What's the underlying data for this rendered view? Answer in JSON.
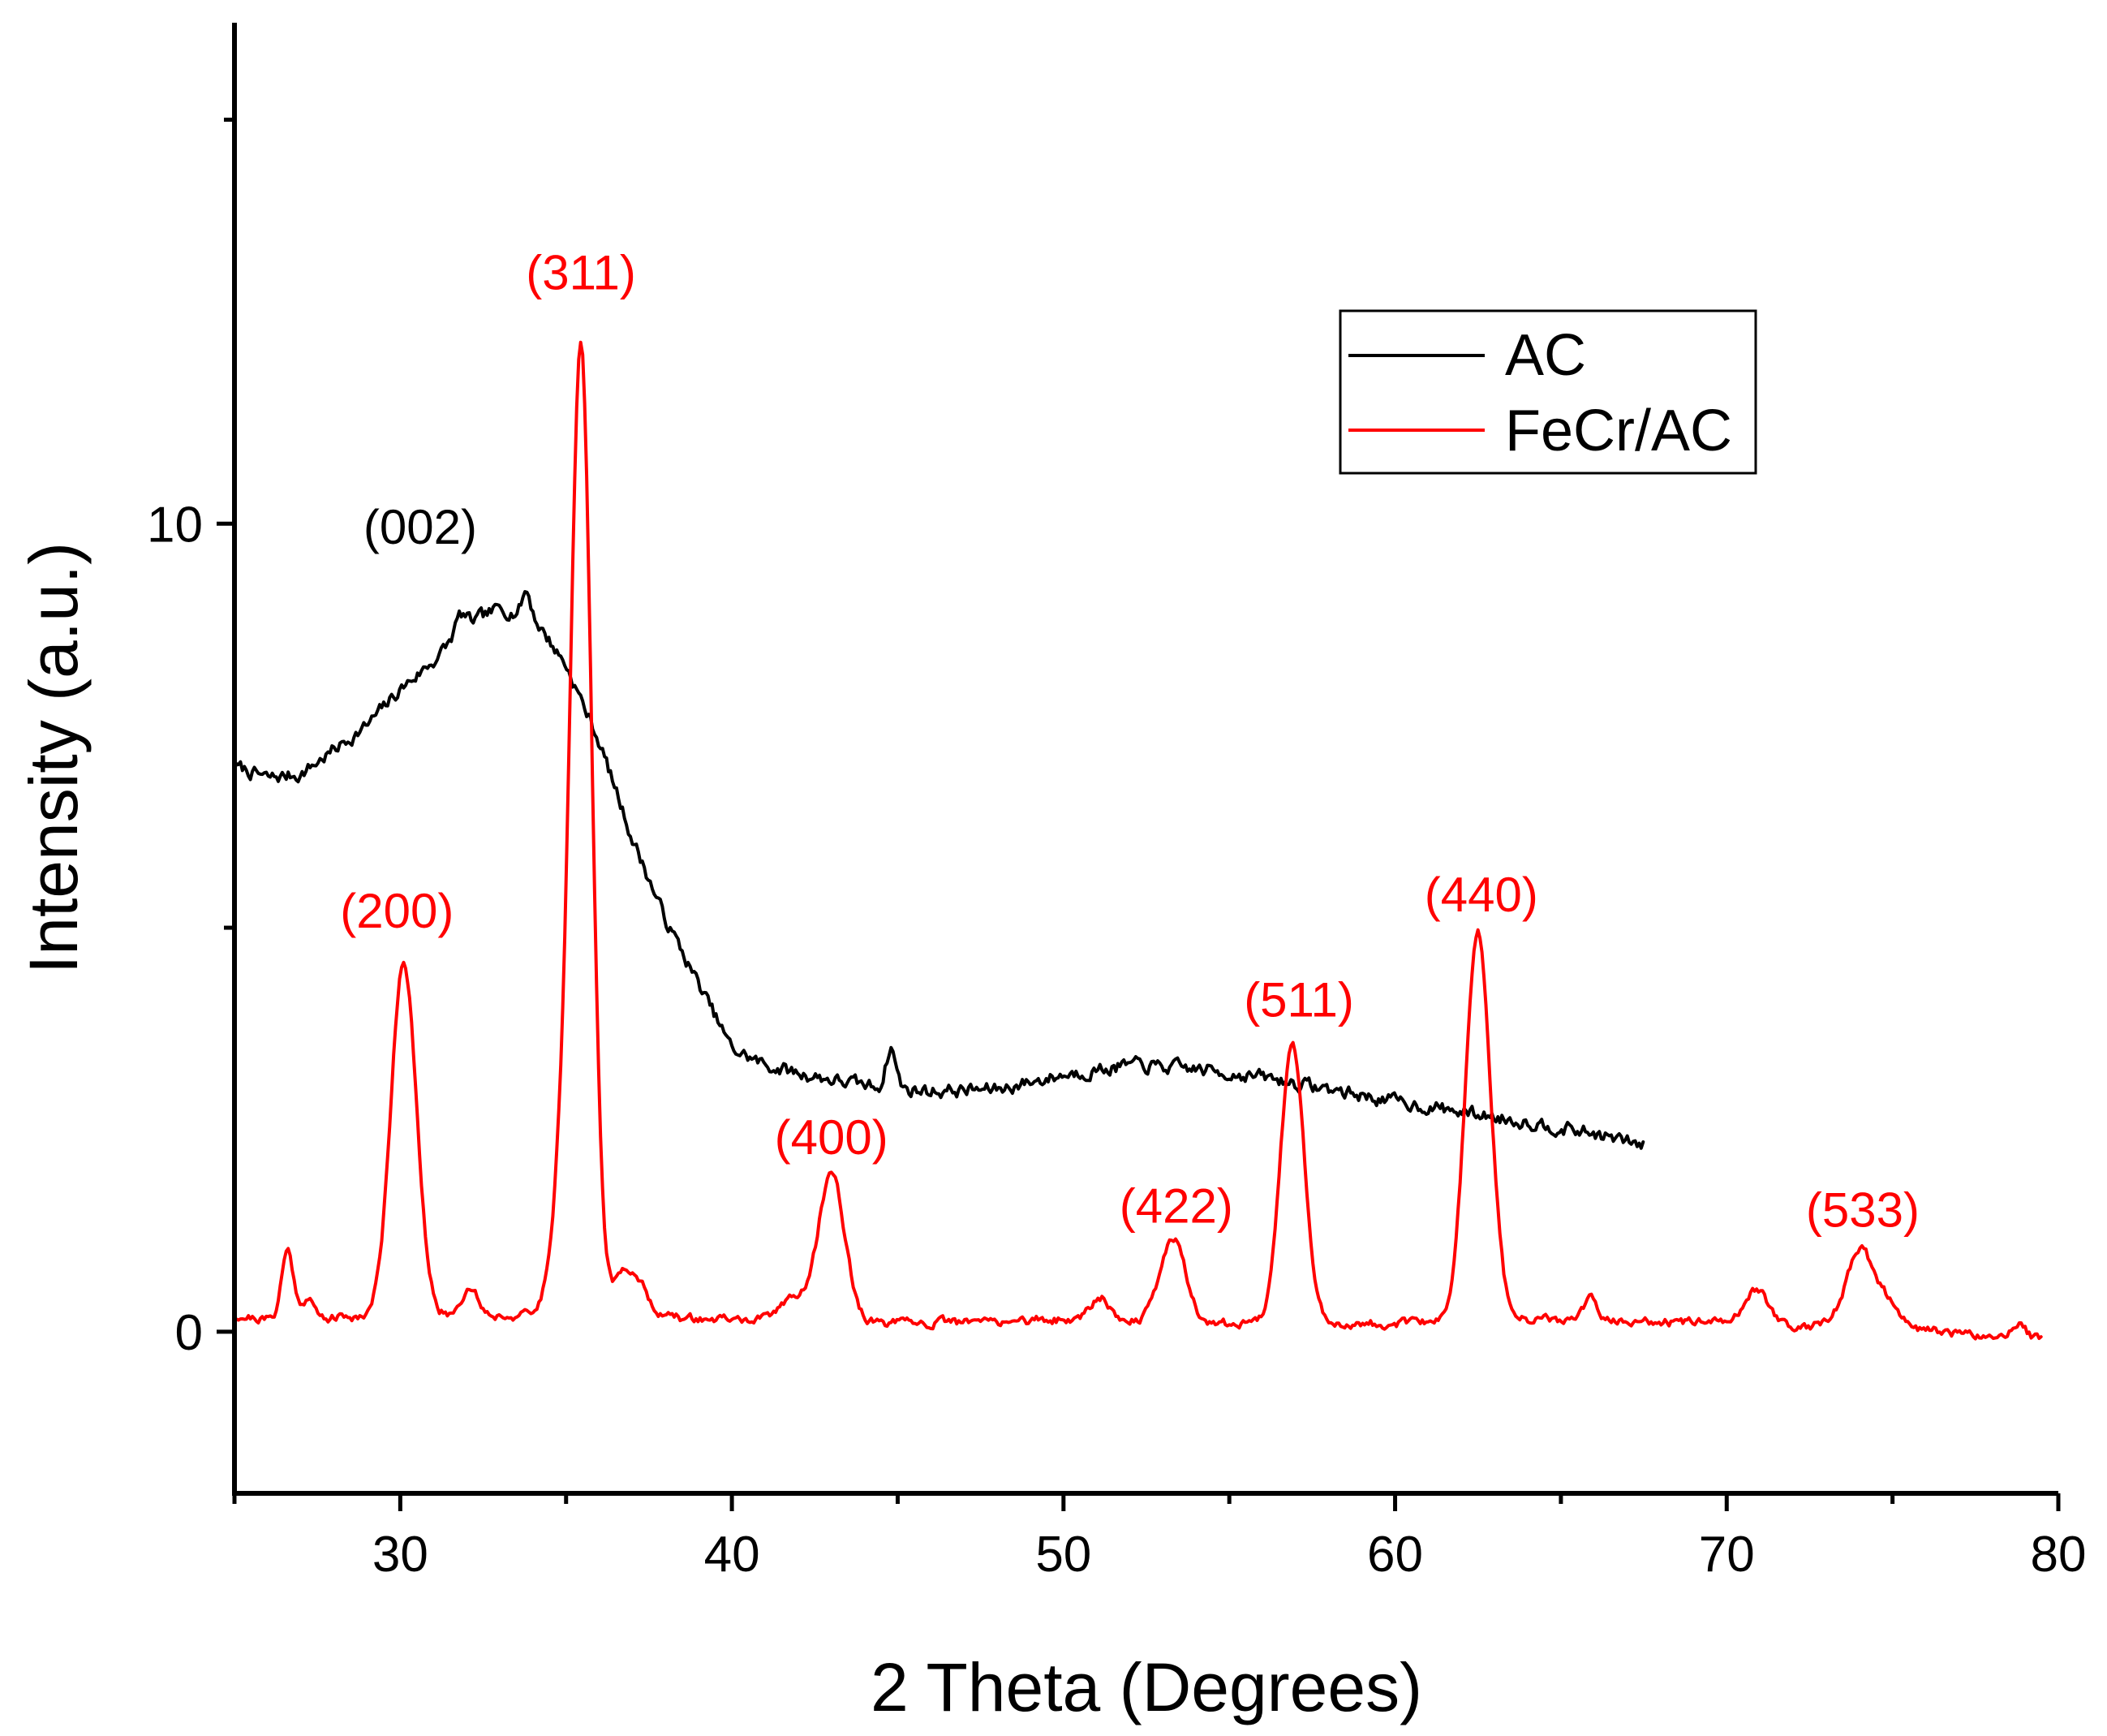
{
  "chart_data": {
    "type": "line",
    "title": "",
    "xlabel": "2 Theta (Degrees)",
    "ylabel": "Intensity (a.u.)",
    "xlim": [
      25,
      80
    ],
    "ylim": [
      -2,
      16.2
    ],
    "x_ticks": [
      30,
      40,
      50,
      60,
      70,
      80
    ],
    "y_ticks": [
      0,
      10
    ],
    "x_minor_step": 5,
    "y_minor_step": 5,
    "grid": false,
    "legend_position": "top-right",
    "series": [
      {
        "name": "AC",
        "color": "#000000",
        "baseline": [
          [
            25,
            7.0
          ],
          [
            26,
            6.85
          ],
          [
            27,
            6.9
          ],
          [
            28,
            7.2
          ],
          [
            29,
            7.5
          ],
          [
            30,
            7.95
          ],
          [
            31,
            8.3
          ],
          [
            32,
            8.75
          ],
          [
            33,
            8.95
          ],
          [
            34,
            8.85
          ],
          [
            35,
            8.25
          ],
          [
            36,
            7.3
          ],
          [
            37,
            6.1
          ],
          [
            38,
            5.1
          ],
          [
            39,
            4.3
          ],
          [
            40,
            3.5
          ],
          [
            41,
            3.3
          ],
          [
            42,
            3.2
          ],
          [
            43,
            3.12
          ],
          [
            44,
            3.05
          ],
          [
            45,
            3.0
          ],
          [
            46,
            2.98
          ],
          [
            48,
            3.0
          ],
          [
            50,
            3.18
          ],
          [
            52,
            3.3
          ],
          [
            54,
            3.25
          ],
          [
            56,
            3.15
          ],
          [
            58,
            3.0
          ],
          [
            60,
            2.85
          ],
          [
            62,
            2.72
          ],
          [
            64,
            2.6
          ],
          [
            66,
            2.45
          ],
          [
            67.5,
            2.3
          ]
        ],
        "peaks": [
          [
            31.8,
            0.2,
            0.15
          ],
          [
            33.8,
            0.3,
            0.12
          ],
          [
            44.8,
            0.5,
            0.15
          ]
        ],
        "noise": 0.07,
        "seed": 7,
        "step": 0.06
      },
      {
        "name": "FeCr/AC",
        "color": "#ff0000",
        "baseline": [
          [
            25,
            0.2
          ],
          [
            26,
            0.15
          ],
          [
            30,
            0.2
          ],
          [
            35,
            0.2
          ],
          [
            40,
            0.15
          ],
          [
            45,
            0.1
          ],
          [
            50,
            0.15
          ],
          [
            55,
            0.1
          ],
          [
            60,
            0.1
          ],
          [
            65,
            0.15
          ],
          [
            70,
            0.1
          ],
          [
            75,
            0.05
          ],
          [
            79.5,
            -0.1
          ]
        ],
        "peaks": [
          [
            26.6,
            0.85,
            0.18
          ],
          [
            27.2,
            0.25,
            0.18
          ],
          [
            30.1,
            4.4,
            0.38
          ],
          [
            32.1,
            0.35,
            0.25
          ],
          [
            34.8,
            1.2,
            0.3
          ],
          [
            35.45,
            11.9,
            0.32
          ],
          [
            36.9,
            0.6,
            0.45
          ],
          [
            41.8,
            0.3,
            0.35
          ],
          [
            43.0,
            1.85,
            0.4
          ],
          [
            51.1,
            0.3,
            0.3
          ],
          [
            53.3,
            1.05,
            0.38
          ],
          [
            56.9,
            3.45,
            0.36
          ],
          [
            62.5,
            4.8,
            0.38
          ],
          [
            65.9,
            0.25,
            0.2
          ],
          [
            70.9,
            0.45,
            0.35
          ],
          [
            74.0,
            0.95,
            0.4
          ],
          [
            74.8,
            0.3,
            0.35
          ],
          [
            78.8,
            0.2,
            0.2
          ]
        ],
        "noise": 0.045,
        "seed": 21,
        "step": 0.06
      }
    ],
    "annotations": [
      {
        "text": "(002)",
        "x": 30.6,
        "y": 9.75,
        "color": "#000000"
      },
      {
        "text": "(311)",
        "x": 35.45,
        "y": 12.9,
        "color": "#ff0000"
      },
      {
        "text": "(200)",
        "x": 29.9,
        "y": 5.0,
        "color": "#ff0000"
      },
      {
        "text": "(400)",
        "x": 43.0,
        "y": 2.2,
        "color": "#ff0000"
      },
      {
        "text": "(422)",
        "x": 53.4,
        "y": 1.35,
        "color": "#ff0000"
      },
      {
        "text": "(511)",
        "x": 57.1,
        "y": 3.9,
        "color": "#ff0000"
      },
      {
        "text": "(440)",
        "x": 62.6,
        "y": 5.2,
        "color": "#ff0000"
      },
      {
        "text": "(533)",
        "x": 74.1,
        "y": 1.3,
        "color": "#ff0000"
      }
    ]
  }
}
